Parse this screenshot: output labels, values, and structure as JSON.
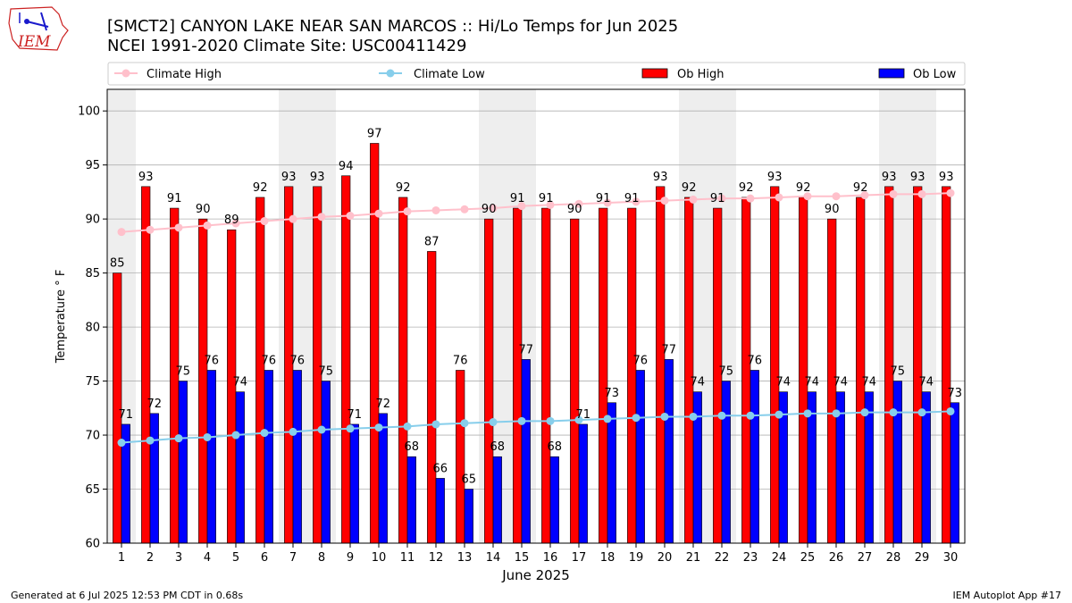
{
  "header": {
    "title_line1": "[SMCT2] CANYON LAKE NEAR SAN MARCOS :: Hi/Lo Temps for Jun 2025",
    "title_line2": "NCEI 1991-2020 Climate Site: USC00411429"
  },
  "logo": {
    "text": "IEM"
  },
  "footer": {
    "generated": "Generated at 6 Jul 2025 12:53 PM CDT in 0.68s",
    "app": "IEM Autoplot App #17"
  },
  "colors": {
    "ob_high": "#ff0000",
    "ob_low": "#0000ff",
    "climate_high": "#ffc0cb",
    "climate_low": "#87ceeb",
    "weekend_shade": "#eeeeee",
    "grid": "#b0b0b0"
  },
  "chart_data": {
    "type": "bar",
    "xlabel": "June 2025",
    "ylabel": "Temperature ° F",
    "ylim": [
      60,
      102
    ],
    "yticks": [
      60,
      65,
      70,
      75,
      80,
      85,
      90,
      95,
      100
    ],
    "grid": true,
    "legend_placement": "top",
    "categories": [
      "1",
      "2",
      "3",
      "4",
      "5",
      "6",
      "7",
      "8",
      "9",
      "10",
      "11",
      "12",
      "13",
      "14",
      "15",
      "16",
      "17",
      "18",
      "19",
      "20",
      "21",
      "22",
      "23",
      "24",
      "25",
      "26",
      "27",
      "28",
      "29",
      "30"
    ],
    "weekend_days": [
      1,
      7,
      8,
      14,
      15,
      21,
      22,
      28,
      29
    ],
    "series": [
      {
        "name": "Climate High",
        "kind": "line",
        "values": [
          88.8,
          89.0,
          89.2,
          89.4,
          89.6,
          89.8,
          90.0,
          90.2,
          90.3,
          90.5,
          90.7,
          90.8,
          90.9,
          91.0,
          91.2,
          91.3,
          91.4,
          91.5,
          91.6,
          91.7,
          91.8,
          91.9,
          91.9,
          92.0,
          92.1,
          92.1,
          92.2,
          92.3,
          92.3,
          92.4
        ]
      },
      {
        "name": "Climate Low",
        "kind": "line",
        "values": [
          69.3,
          69.5,
          69.7,
          69.8,
          70.0,
          70.2,
          70.3,
          70.5,
          70.6,
          70.7,
          70.8,
          71.0,
          71.1,
          71.2,
          71.3,
          71.3,
          71.4,
          71.5,
          71.6,
          71.7,
          71.7,
          71.8,
          71.8,
          71.9,
          72.0,
          72.0,
          72.1,
          72.1,
          72.1,
          72.2
        ]
      },
      {
        "name": "Ob High",
        "kind": "bar",
        "values": [
          85,
          93,
          91,
          90,
          89,
          92,
          93,
          93,
          94,
          97,
          92,
          87,
          76,
          90,
          91,
          91,
          90,
          91,
          91,
          93,
          92,
          91,
          92,
          93,
          92,
          90,
          92,
          93,
          93,
          93
        ]
      },
      {
        "name": "Ob Low",
        "kind": "bar",
        "values": [
          71,
          72,
          75,
          76,
          74,
          76,
          76,
          75,
          71,
          72,
          68,
          66,
          65,
          68,
          77,
          68,
          71,
          73,
          76,
          77,
          74,
          75,
          76,
          74,
          74,
          74,
          74,
          75,
          74,
          73
        ]
      }
    ]
  }
}
